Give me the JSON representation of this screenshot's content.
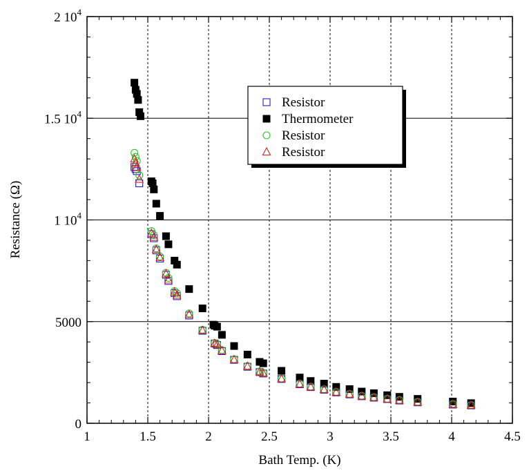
{
  "chart_data": {
    "type": "scatter",
    "title": "",
    "xlabel": "Bath Temp. (K)",
    "ylabel": "Resistance (Ω)",
    "xlim": [
      1,
      4.5
    ],
    "ylim": [
      0,
      20000
    ],
    "x_ticks": [
      {
        "value": 1,
        "label": "1"
      },
      {
        "value": 1.5,
        "label": "1.5"
      },
      {
        "value": 2,
        "label": "2"
      },
      {
        "value": 2.5,
        "label": "2.5"
      },
      {
        "value": 3,
        "label": "3"
      },
      {
        "value": 3.5,
        "label": "3.5"
      },
      {
        "value": 4,
        "label": "4"
      },
      {
        "value": 4.5,
        "label": "4.5"
      }
    ],
    "y_ticks": [
      {
        "value": 0,
        "mantissa": "0",
        "exp": ""
      },
      {
        "value": 5000,
        "mantissa": "5000",
        "exp": ""
      },
      {
        "value": 10000,
        "mantissa": "1 10",
        "exp": "4"
      },
      {
        "value": 15000,
        "mantissa": "1.5 10",
        "exp": "4"
      },
      {
        "value": 20000,
        "mantissa": "2 10",
        "exp": "4"
      }
    ],
    "grid": {
      "x_major": "dotted",
      "y_major": "solid"
    },
    "legend_position": "upper-right",
    "series": [
      {
        "name": "Resistor",
        "marker": "open-square",
        "color": "#1c1cc8",
        "points": [
          [
            1.39,
            12600
          ],
          [
            1.4,
            12500
          ],
          [
            1.41,
            12400
          ],
          [
            1.43,
            11800
          ],
          [
            1.53,
            9300
          ],
          [
            1.55,
            9100
          ],
          [
            1.57,
            8500
          ],
          [
            1.6,
            8100
          ],
          [
            1.65,
            7300
          ],
          [
            1.67,
            7000
          ],
          [
            1.72,
            6400
          ],
          [
            1.74,
            6250
          ],
          [
            1.84,
            5300
          ],
          [
            1.95,
            4550
          ],
          [
            2.05,
            3920
          ],
          [
            2.07,
            3850
          ],
          [
            2.11,
            3550
          ],
          [
            2.21,
            3120
          ],
          [
            2.32,
            2780
          ],
          [
            2.42,
            2520
          ],
          [
            2.45,
            2450
          ],
          [
            2.6,
            2180
          ],
          [
            2.75,
            1920
          ],
          [
            2.84,
            1780
          ],
          [
            2.95,
            1650
          ],
          [
            3.05,
            1520
          ],
          [
            3.16,
            1420
          ],
          [
            3.26,
            1330
          ],
          [
            3.36,
            1260
          ],
          [
            3.47,
            1190
          ],
          [
            3.57,
            1120
          ],
          [
            3.72,
            1030
          ],
          [
            4.01,
            920
          ],
          [
            4.16,
            880
          ]
        ]
      },
      {
        "name": "Thermometer",
        "marker": "filled-square",
        "color": "#000000",
        "points": [
          [
            1.39,
            16750
          ],
          [
            1.4,
            16400
          ],
          [
            1.41,
            16200
          ],
          [
            1.42,
            15900
          ],
          [
            1.43,
            15300
          ],
          [
            1.44,
            15100
          ],
          [
            1.53,
            11900
          ],
          [
            1.54,
            11800
          ],
          [
            1.55,
            11500
          ],
          [
            1.57,
            10800
          ],
          [
            1.6,
            10200
          ],
          [
            1.65,
            9200
          ],
          [
            1.67,
            8800
          ],
          [
            1.72,
            8000
          ],
          [
            1.74,
            7800
          ],
          [
            1.84,
            6600
          ],
          [
            1.95,
            5650
          ],
          [
            2.04,
            4850
          ],
          [
            2.05,
            4800
          ],
          [
            2.07,
            4750
          ],
          [
            2.11,
            4350
          ],
          [
            2.21,
            3800
          ],
          [
            2.32,
            3380
          ],
          [
            2.42,
            3020
          ],
          [
            2.45,
            2950
          ],
          [
            2.6,
            2580
          ],
          [
            2.75,
            2250
          ],
          [
            2.84,
            2080
          ],
          [
            2.95,
            1950
          ],
          [
            3.05,
            1790
          ],
          [
            3.16,
            1680
          ],
          [
            3.26,
            1560
          ],
          [
            3.36,
            1480
          ],
          [
            3.47,
            1380
          ],
          [
            3.57,
            1300
          ],
          [
            3.72,
            1200
          ],
          [
            4.01,
            1070
          ],
          [
            4.16,
            990
          ]
        ]
      },
      {
        "name": "Resistor",
        "marker": "open-circle",
        "color": "#22c822",
        "points": [
          [
            1.39,
            13300
          ],
          [
            1.4,
            13100
          ],
          [
            1.41,
            12900
          ],
          [
            1.43,
            12200
          ],
          [
            1.53,
            9450
          ],
          [
            1.55,
            9250
          ],
          [
            1.57,
            8600
          ],
          [
            1.6,
            8200
          ],
          [
            1.65,
            7400
          ],
          [
            1.67,
            7150
          ],
          [
            1.72,
            6500
          ],
          [
            1.74,
            6400
          ],
          [
            1.84,
            5400
          ],
          [
            1.95,
            4600
          ],
          [
            2.05,
            3950
          ],
          [
            2.07,
            3900
          ],
          [
            2.11,
            3600
          ],
          [
            2.21,
            3150
          ],
          [
            2.32,
            2820
          ],
          [
            2.42,
            2550
          ],
          [
            2.45,
            2480
          ],
          [
            2.6,
            2200
          ],
          [
            2.75,
            1950
          ],
          [
            2.84,
            1800
          ],
          [
            2.95,
            1670
          ],
          [
            3.05,
            1540
          ],
          [
            3.16,
            1440
          ],
          [
            3.26,
            1350
          ],
          [
            3.36,
            1280
          ],
          [
            3.47,
            1200
          ],
          [
            3.57,
            1140
          ],
          [
            3.72,
            1050
          ],
          [
            4.01,
            950
          ],
          [
            4.16,
            890
          ]
        ]
      },
      {
        "name": "Resistor",
        "marker": "open-triangle",
        "color": "#dc1e1e",
        "points": [
          [
            1.39,
            13000
          ],
          [
            1.4,
            12800
          ],
          [
            1.41,
            12600
          ],
          [
            1.43,
            12000
          ],
          [
            1.53,
            9350
          ],
          [
            1.55,
            9150
          ],
          [
            1.57,
            8550
          ],
          [
            1.6,
            8150
          ],
          [
            1.65,
            7350
          ],
          [
            1.67,
            7050
          ],
          [
            1.72,
            6450
          ],
          [
            1.74,
            6300
          ],
          [
            1.84,
            5350
          ],
          [
            1.95,
            4570
          ],
          [
            2.05,
            3930
          ],
          [
            2.07,
            3870
          ],
          [
            2.11,
            3570
          ],
          [
            2.21,
            3130
          ],
          [
            2.32,
            2800
          ],
          [
            2.42,
            2530
          ],
          [
            2.45,
            2460
          ],
          [
            2.6,
            2190
          ],
          [
            2.75,
            1930
          ],
          [
            2.84,
            1790
          ],
          [
            2.95,
            1660
          ],
          [
            3.05,
            1530
          ],
          [
            3.16,
            1430
          ],
          [
            3.26,
            1340
          ],
          [
            3.36,
            1270
          ],
          [
            3.47,
            1195
          ],
          [
            3.57,
            1130
          ],
          [
            3.72,
            1040
          ],
          [
            4.01,
            930
          ],
          [
            4.16,
            885
          ]
        ]
      }
    ]
  }
}
